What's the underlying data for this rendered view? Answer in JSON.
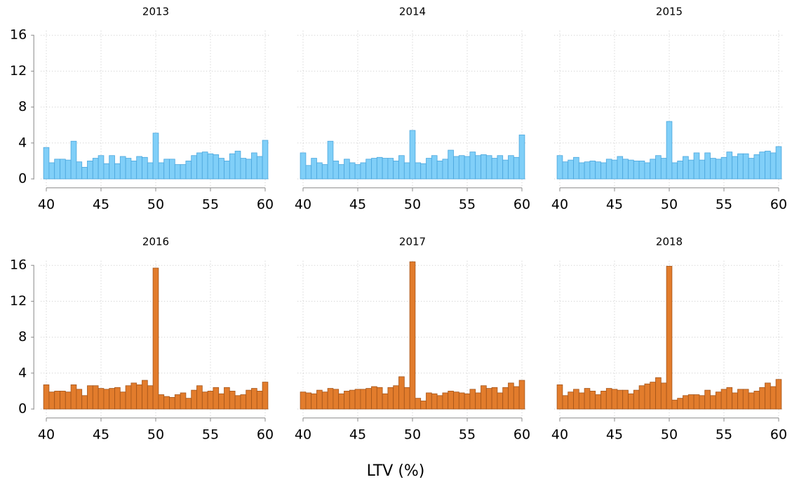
{
  "x_label": "LTV (%)",
  "chart_data": [
    {
      "type": "histogram",
      "title": "2013",
      "color": "#80cff8",
      "edge_color": "#4aa6dd",
      "bins": [
        39.75,
        40.25,
        40.75,
        41.25,
        41.75,
        42.25,
        42.75,
        43.25,
        43.75,
        44.25,
        44.75,
        45.25,
        45.75,
        46.25,
        46.75,
        47.25,
        47.75,
        48.25,
        48.75,
        49.25,
        49.75,
        50.25,
        50.75,
        51.25,
        51.75,
        52.25,
        52.75,
        53.25,
        53.75,
        54.25,
        54.75,
        55.25,
        55.75,
        56.25,
        56.75,
        57.25,
        57.75,
        58.25,
        58.75,
        59.25,
        59.75,
        60.25
      ],
      "values": [
        3.5,
        1.8,
        2.2,
        2.2,
        2.1,
        4.2,
        1.9,
        1.3,
        2.0,
        2.3,
        2.6,
        1.7,
        2.6,
        1.7,
        2.5,
        2.3,
        2.0,
        2.5,
        2.4,
        1.8,
        5.1,
        1.8,
        2.2,
        2.2,
        1.6,
        1.6,
        2.0,
        2.6,
        2.9,
        3.0,
        2.8,
        2.7,
        2.3,
        2.0,
        2.8,
        3.1,
        2.3,
        2.2,
        2.9,
        2.5,
        4.3
      ],
      "xlim": [
        39.5,
        60.5
      ],
      "ylim": [
        -1,
        16.5
      ],
      "xticks": [
        40,
        45,
        50,
        55,
        60
      ],
      "yticks": [
        0,
        4,
        8,
        12,
        16
      ],
      "grid": true
    },
    {
      "type": "histogram",
      "title": "2014",
      "color": "#80cff8",
      "edge_color": "#4aa6dd",
      "bins": [
        39.75,
        40.25,
        40.75,
        41.25,
        41.75,
        42.25,
        42.75,
        43.25,
        43.75,
        44.25,
        44.75,
        45.25,
        45.75,
        46.25,
        46.75,
        47.25,
        47.75,
        48.25,
        48.75,
        49.25,
        49.75,
        50.25,
        50.75,
        51.25,
        51.75,
        52.25,
        52.75,
        53.25,
        53.75,
        54.25,
        54.75,
        55.25,
        55.75,
        56.25,
        56.75,
        57.25,
        57.75,
        58.25,
        58.75,
        59.25,
        59.75,
        60.25
      ],
      "values": [
        2.9,
        1.5,
        2.3,
        1.8,
        1.6,
        4.2,
        2.0,
        1.6,
        2.2,
        1.8,
        1.6,
        1.8,
        2.2,
        2.3,
        2.4,
        2.3,
        2.3,
        2.0,
        2.6,
        1.8,
        5.4,
        1.8,
        1.7,
        2.3,
        2.6,
        2.0,
        2.2,
        3.2,
        2.5,
        2.6,
        2.5,
        3.0,
        2.6,
        2.7,
        2.6,
        2.3,
        2.6,
        2.1,
        2.6,
        2.4,
        4.9
      ],
      "xlim": [
        39.5,
        60.5
      ],
      "ylim": [
        -1,
        16.5
      ],
      "xticks": [
        40,
        45,
        50,
        55,
        60
      ],
      "yticks": [
        0,
        4,
        8,
        12,
        16
      ],
      "grid": true
    },
    {
      "type": "histogram",
      "title": "2015",
      "color": "#80cff8",
      "edge_color": "#4aa6dd",
      "bins": [
        39.75,
        40.25,
        40.75,
        41.25,
        41.75,
        42.25,
        42.75,
        43.25,
        43.75,
        44.25,
        44.75,
        45.25,
        45.75,
        46.25,
        46.75,
        47.25,
        47.75,
        48.25,
        48.75,
        49.25,
        49.75,
        50.25,
        50.75,
        51.25,
        51.75,
        52.25,
        52.75,
        53.25,
        53.75,
        54.25,
        54.75,
        55.25,
        55.75,
        56.25,
        56.75,
        57.25,
        57.75,
        58.25,
        58.75,
        59.25,
        59.75,
        60.25
      ],
      "values": [
        2.6,
        1.9,
        2.1,
        2.4,
        1.8,
        1.9,
        2.0,
        1.9,
        1.8,
        2.2,
        2.1,
        2.5,
        2.2,
        2.1,
        2.0,
        2.0,
        1.8,
        2.2,
        2.6,
        2.3,
        6.4,
        1.8,
        2.0,
        2.5,
        2.1,
        2.9,
        2.1,
        2.9,
        2.3,
        2.2,
        2.4,
        3.0,
        2.5,
        2.8,
        2.8,
        2.3,
        2.7,
        3.0,
        3.1,
        2.9,
        3.6
      ],
      "xlim": [
        39.5,
        60.5
      ],
      "ylim": [
        -1,
        16.5
      ],
      "xticks": [
        40,
        45,
        50,
        55,
        60
      ],
      "yticks": [
        0,
        4,
        8,
        12,
        16
      ],
      "grid": true
    },
    {
      "type": "histogram",
      "title": "2016",
      "color": "#e27c2c",
      "edge_color": "#a4541a",
      "bins": [
        39.75,
        40.25,
        40.75,
        41.25,
        41.75,
        42.25,
        42.75,
        43.25,
        43.75,
        44.25,
        44.75,
        45.25,
        45.75,
        46.25,
        46.75,
        47.25,
        47.75,
        48.25,
        48.75,
        49.25,
        49.75,
        50.25,
        50.75,
        51.25,
        51.75,
        52.25,
        52.75,
        53.25,
        53.75,
        54.25,
        54.75,
        55.25,
        55.75,
        56.25,
        56.75,
        57.25,
        57.75,
        58.25,
        58.75,
        59.25,
        59.75,
        60.25
      ],
      "values": [
        2.7,
        1.9,
        2.0,
        2.0,
        1.9,
        2.7,
        2.2,
        1.5,
        2.6,
        2.6,
        2.3,
        2.2,
        2.3,
        2.4,
        1.9,
        2.6,
        2.9,
        2.7,
        3.2,
        2.6,
        15.7,
        1.6,
        1.4,
        1.3,
        1.6,
        1.8,
        1.2,
        2.1,
        2.6,
        1.9,
        2.0,
        2.4,
        1.7,
        2.4,
        2.0,
        1.5,
        1.6,
        2.1,
        2.3,
        2.0,
        3.0
      ],
      "xlim": [
        39.5,
        60.5
      ],
      "ylim": [
        -1,
        16.5
      ],
      "xticks": [
        40,
        45,
        50,
        55,
        60
      ],
      "yticks": [
        0,
        4,
        8,
        12,
        16
      ],
      "grid": true
    },
    {
      "type": "histogram",
      "title": "2017",
      "color": "#e27c2c",
      "edge_color": "#a4541a",
      "bins": [
        39.75,
        40.25,
        40.75,
        41.25,
        41.75,
        42.25,
        42.75,
        43.25,
        43.75,
        44.25,
        44.75,
        45.25,
        45.75,
        46.25,
        46.75,
        47.25,
        47.75,
        48.25,
        48.75,
        49.25,
        49.75,
        50.25,
        50.75,
        51.25,
        51.75,
        52.25,
        52.75,
        53.25,
        53.75,
        54.25,
        54.75,
        55.25,
        55.75,
        56.25,
        56.75,
        57.25,
        57.75,
        58.25,
        58.75,
        59.25,
        59.75,
        60.25
      ],
      "values": [
        1.9,
        1.8,
        1.7,
        2.1,
        1.9,
        2.3,
        2.2,
        1.7,
        2.0,
        2.1,
        2.2,
        2.2,
        2.3,
        2.5,
        2.4,
        1.7,
        2.4,
        2.6,
        3.6,
        2.4,
        16.4,
        1.2,
        0.9,
        1.8,
        1.7,
        1.5,
        1.8,
        2.0,
        1.9,
        1.8,
        1.7,
        2.2,
        1.8,
        2.6,
        2.3,
        2.4,
        1.8,
        2.4,
        2.9,
        2.5,
        3.2
      ],
      "xlim": [
        39.5,
        60.5
      ],
      "ylim": [
        -1,
        16.5
      ],
      "xticks": [
        40,
        45,
        50,
        55,
        60
      ],
      "yticks": [
        0,
        4,
        8,
        12,
        16
      ],
      "grid": true
    },
    {
      "type": "histogram",
      "title": "2018",
      "color": "#e27c2c",
      "edge_color": "#a4541a",
      "bins": [
        39.75,
        40.25,
        40.75,
        41.25,
        41.75,
        42.25,
        42.75,
        43.25,
        43.75,
        44.25,
        44.75,
        45.25,
        45.75,
        46.25,
        46.75,
        47.25,
        47.75,
        48.25,
        48.75,
        49.25,
        49.75,
        50.25,
        50.75,
        51.25,
        51.75,
        52.25,
        52.75,
        53.25,
        53.75,
        54.25,
        54.75,
        55.25,
        55.75,
        56.25,
        56.75,
        57.25,
        57.75,
        58.25,
        58.75,
        59.25,
        59.75,
        60.25
      ],
      "values": [
        2.7,
        1.5,
        1.9,
        2.2,
        1.8,
        2.3,
        2.0,
        1.6,
        2.0,
        2.3,
        2.2,
        2.1,
        2.1,
        1.7,
        2.1,
        2.6,
        2.8,
        3.0,
        3.5,
        2.9,
        15.9,
        1.0,
        1.2,
        1.5,
        1.6,
        1.6,
        1.5,
        2.1,
        1.5,
        1.9,
        2.2,
        2.4,
        1.8,
        2.2,
        2.2,
        1.8,
        2.0,
        2.4,
        2.9,
        2.5,
        3.3
      ],
      "xlim": [
        39.5,
        60.5
      ],
      "ylim": [
        -1,
        16.5
      ],
      "xticks": [
        40,
        45,
        50,
        55,
        60
      ],
      "yticks": [
        0,
        4,
        8,
        12,
        16
      ],
      "grid": true
    }
  ]
}
